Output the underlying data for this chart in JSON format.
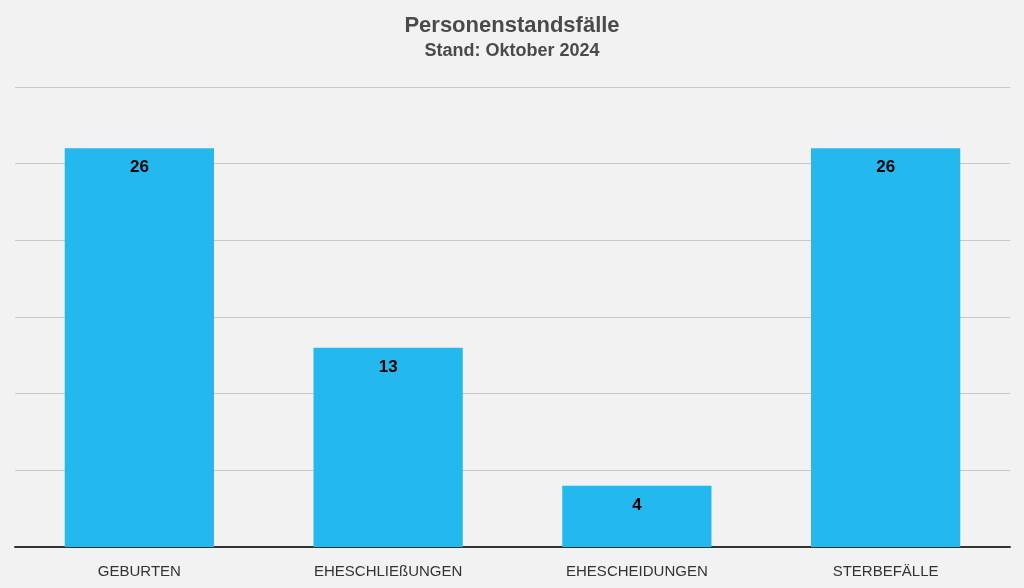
{
  "chart_data": {
    "type": "bar",
    "title": "Personenstandsfälle",
    "subtitle": "Stand: Oktober 2024",
    "categories": [
      "GEBURTEN",
      "EHESCHLIEßUNGEN",
      "EHESCHEIDUNGEN",
      "STERBEFÄLLE"
    ],
    "values": [
      26,
      13,
      4,
      26
    ],
    "color": "#23b9ee",
    "ylim": [
      0,
      30
    ],
    "yticks": [
      {
        "value": 0,
        "label": null
      },
      {
        "value": 5,
        "label": null
      },
      {
        "value": 10,
        "label": null
      },
      {
        "value": 15,
        "label": null
      },
      {
        "value": 20,
        "label": null
      },
      {
        "value": 25,
        "label": null
      },
      {
        "value": 30,
        "label": null
      }
    ],
    "tick_labels": "x",
    "grid": "y",
    "data_labels": true
  }
}
